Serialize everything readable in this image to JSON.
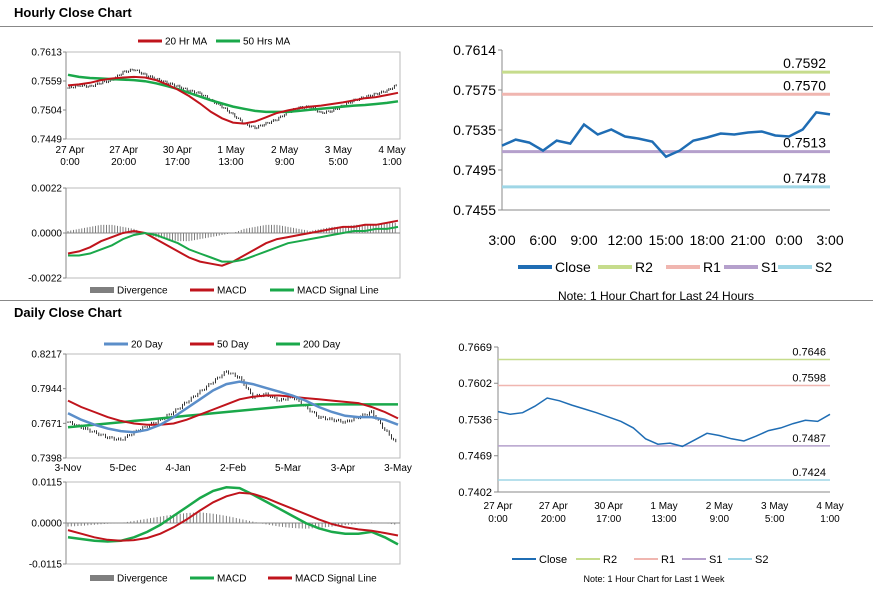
{
  "sections": {
    "hourly_title": "Hourly Close Chart",
    "daily_title": "Daily Close Chart"
  },
  "colors": {
    "close": "#1f6db4",
    "ma_red": "#c0141c",
    "ma_green": "#1aa84a",
    "ma_blue": "#5b8ec9",
    "r2": "#c6dc8c",
    "r1": "#f0b6b0",
    "s1": "#b5a0cc",
    "s2": "#9fd6e6",
    "divergence": "#7f7f7f"
  },
  "chart_data": [
    {
      "id": "hourly-price",
      "type": "line",
      "legend": [
        "20 Hr MA",
        "50 Hrs MA"
      ],
      "ylim": [
        0.7449,
        0.7613
      ],
      "yticks": [
        "0.7613",
        "0.7559",
        "0.7504",
        "0.7449"
      ],
      "xticks": [
        [
          "27 Apr",
          "0:00"
        ],
        [
          "27 Apr",
          "20:00"
        ],
        [
          "30 Apr",
          "17:00"
        ],
        [
          "1 May",
          "13:00"
        ],
        [
          "2 May",
          "9:00"
        ],
        [
          "3 May",
          "5:00"
        ],
        [
          "4 May",
          "1:00"
        ]
      ],
      "price": [
        0.7545,
        0.755,
        0.7548,
        0.7555,
        0.756,
        0.7575,
        0.758,
        0.757,
        0.7562,
        0.7555,
        0.7548,
        0.754,
        0.7535,
        0.7522,
        0.751,
        0.7495,
        0.7478,
        0.747,
        0.7478,
        0.7486,
        0.75,
        0.7508,
        0.751,
        0.7498,
        0.7502,
        0.7512,
        0.7522,
        0.7528,
        0.7534,
        0.754,
        0.7552
      ],
      "ma20": [
        0.755,
        0.7552,
        0.7555,
        0.756,
        0.7563,
        0.7565,
        0.7566,
        0.7565,
        0.756,
        0.7552,
        0.7542,
        0.753,
        0.7516,
        0.75,
        0.7488,
        0.748,
        0.7478,
        0.7482,
        0.749,
        0.7498,
        0.7503,
        0.7507,
        0.751,
        0.7512,
        0.7515,
        0.7518,
        0.7522,
        0.7526,
        0.7528,
        0.7532,
        0.7536
      ],
      "ma50": [
        0.757,
        0.7566,
        0.7564,
        0.7563,
        0.7562,
        0.7561,
        0.756,
        0.7558,
        0.7554,
        0.7549,
        0.7543,
        0.7536,
        0.7529,
        0.7522,
        0.7516,
        0.751,
        0.7506,
        0.7502,
        0.75,
        0.75,
        0.75,
        0.7502,
        0.7504,
        0.7506,
        0.7508,
        0.751,
        0.7512,
        0.7513,
        0.7515,
        0.7517,
        0.752
      ]
    },
    {
      "id": "hourly-macd",
      "type": "bar",
      "legend": [
        "Divergence",
        "MACD",
        "MACD Signal Line"
      ],
      "ylim": [
        -0.0022,
        0.0022
      ],
      "yticks": [
        "0.0022",
        "0.0000",
        "-0.0022"
      ],
      "divergence": [
        0.0001,
        0.0002,
        0.0003,
        0.0004,
        0.0004,
        0.0003,
        0.0002,
        0.0,
        -0.0002,
        -0.0003,
        -0.0004,
        -0.0004,
        -0.0003,
        -0.0002,
        -0.0001,
        0.0,
        0.0002,
        0.0003,
        0.0004,
        0.0004,
        0.0003,
        0.0002,
        0.0001,
        0.0002,
        0.0003,
        0.0003,
        0.0004,
        0.0004,
        0.0004,
        0.0005,
        0.0005
      ],
      "macd": [
        -0.001,
        -0.0009,
        -0.0007,
        -0.0004,
        -0.0002,
        0.0,
        0.0001,
        0.0,
        -0.0003,
        -0.0006,
        -0.0009,
        -0.0012,
        -0.0014,
        -0.0015,
        -0.0016,
        -0.0014,
        -0.0011,
        -0.0008,
        -0.0005,
        -0.0003,
        -0.0002,
        -0.0001,
        0.0,
        0.0001,
        0.0002,
        0.0003,
        0.0003,
        0.0004,
        0.0004,
        0.0005,
        0.0006
      ],
      "signal": [
        -0.0011,
        -0.0011,
        -0.001,
        -0.0008,
        -0.0006,
        -0.0003,
        -0.0001,
        0.0,
        -0.0001,
        -0.0003,
        -0.0005,
        -0.0008,
        -0.001,
        -0.0012,
        -0.0014,
        -0.0014,
        -0.0013,
        -0.0011,
        -0.0009,
        -0.0007,
        -0.0005,
        -0.0004,
        -0.0003,
        -0.0002,
        -0.0001,
        0.0,
        0.0001,
        0.0001,
        0.0002,
        0.0002,
        0.0003
      ]
    },
    {
      "id": "hourly-close-24h",
      "type": "line",
      "legend": [
        "Close",
        "R2",
        "R1",
        "S1",
        "S2"
      ],
      "ylim": [
        0.7455,
        0.7614
      ],
      "yticks": [
        "0.7614",
        "0.7575",
        "0.7535",
        "0.7495",
        "0.7455"
      ],
      "xticks": [
        "3:00",
        "6:00",
        "9:00",
        "12:00",
        "15:00",
        "18:00",
        "21:00",
        "0:00",
        "3:00"
      ],
      "levels": {
        "R2": 0.7592,
        "R1": 0.757,
        "S1": 0.7513,
        "S2": 0.7478
      },
      "level_labels": {
        "R2": "0.7592",
        "R1": "0.7570",
        "S1": "0.7513",
        "S2": "0.7478"
      },
      "close": [
        0.7519,
        0.7525,
        0.7522,
        0.7514,
        0.7524,
        0.7521,
        0.754,
        0.753,
        0.7535,
        0.7528,
        0.7526,
        0.7523,
        0.7508,
        0.7514,
        0.7524,
        0.7527,
        0.7531,
        0.753,
        0.7532,
        0.7533,
        0.7529,
        0.7528,
        0.7535,
        0.7552,
        0.755
      ],
      "note": "Note: 1 Hour Chart for Last 24 Hours"
    },
    {
      "id": "daily-price",
      "type": "line",
      "legend": [
        "20 Day",
        "50 Day",
        "200 Day"
      ],
      "ylim": [
        0.7398,
        0.8217
      ],
      "yticks": [
        "0.8217",
        "0.7944",
        "0.7671",
        "0.7398"
      ],
      "xticks": [
        "3-Nov",
        "5-Dec",
        "4-Jan",
        "2-Feb",
        "5-Mar",
        "3-Apr",
        "3-May"
      ],
      "price": [
        0.768,
        0.764,
        0.76,
        0.756,
        0.754,
        0.76,
        0.765,
        0.77,
        0.776,
        0.784,
        0.792,
        0.8,
        0.808,
        0.803,
        0.788,
        0.79,
        0.785,
        0.788,
        0.78,
        0.772,
        0.77,
        0.768,
        0.772,
        0.776,
        0.762,
        0.75
      ],
      "ma20": [
        0.775,
        0.77,
        0.766,
        0.763,
        0.761,
        0.76,
        0.762,
        0.766,
        0.772,
        0.779,
        0.786,
        0.793,
        0.798,
        0.8,
        0.798,
        0.795,
        0.792,
        0.789,
        0.785,
        0.78,
        0.776,
        0.773,
        0.772,
        0.772,
        0.77,
        0.766
      ],
      "ma50": [
        0.785,
        0.78,
        0.776,
        0.772,
        0.769,
        0.767,
        0.766,
        0.766,
        0.767,
        0.77,
        0.774,
        0.778,
        0.782,
        0.786,
        0.788,
        0.789,
        0.789,
        0.788,
        0.787,
        0.786,
        0.785,
        0.784,
        0.783,
        0.78,
        0.776,
        0.771
      ],
      "ma200": [
        0.764,
        0.765,
        0.766,
        0.767,
        0.768,
        0.769,
        0.77,
        0.771,
        0.772,
        0.773,
        0.774,
        0.775,
        0.776,
        0.777,
        0.778,
        0.779,
        0.78,
        0.781,
        0.7815,
        0.782,
        0.782,
        0.782,
        0.782,
        0.782,
        0.782,
        0.782
      ]
    },
    {
      "id": "daily-macd",
      "type": "bar",
      "legend": [
        "Divergence",
        "MACD",
        "MACD Signal Line"
      ],
      "ylim": [
        -0.0115,
        0.0115
      ],
      "yticks": [
        "0.0115",
        "0.0000",
        "-0.0115"
      ],
      "divergence": [
        -0.001,
        -0.0008,
        -0.0005,
        -0.0002,
        0.0,
        0.0006,
        0.0012,
        0.0018,
        0.0024,
        0.0028,
        0.003,
        0.0026,
        0.002,
        0.0012,
        0.0004,
        -0.0004,
        -0.001,
        -0.0014,
        -0.0016,
        -0.0014,
        -0.001,
        -0.0006,
        -0.0002,
        0.0002,
        0.0,
        -0.0006
      ],
      "macd": [
        -0.004,
        -0.0045,
        -0.005,
        -0.0052,
        -0.005,
        -0.004,
        -0.0025,
        -0.0005,
        0.002,
        0.0045,
        0.007,
        0.009,
        0.01,
        0.0098,
        0.008,
        0.006,
        0.004,
        0.002,
        0.0,
        -0.0015,
        -0.0025,
        -0.003,
        -0.003,
        -0.0025,
        -0.004,
        -0.006
      ],
      "signal": [
        -0.002,
        -0.003,
        -0.004,
        -0.0047,
        -0.005,
        -0.0048,
        -0.0042,
        -0.003,
        -0.0012,
        0.001,
        0.0035,
        0.0058,
        0.0075,
        0.0085,
        0.0082,
        0.007,
        0.0055,
        0.004,
        0.0025,
        0.001,
        -0.0003,
        -0.0012,
        -0.0018,
        -0.0022,
        -0.0028,
        -0.0035
      ]
    },
    {
      "id": "daily-close-week",
      "type": "line",
      "legend": [
        "Close",
        "R2",
        "R1",
        "S1",
        "S2"
      ],
      "ylim": [
        0.7402,
        0.7669
      ],
      "yticks": [
        "0.7669",
        "0.7602",
        "0.7536",
        "0.7469",
        "0.7402"
      ],
      "xticks": [
        [
          "27 Apr",
          "0:00"
        ],
        [
          "27 Apr",
          "20:00"
        ],
        [
          "30 Apr",
          "17:00"
        ],
        [
          "1 May",
          "13:00"
        ],
        [
          "2 May",
          "9:00"
        ],
        [
          "3 May",
          "5:00"
        ],
        [
          "4 May",
          "1:00"
        ]
      ],
      "levels": {
        "R2": 0.7646,
        "R1": 0.7598,
        "S1": 0.7487,
        "S2": 0.7424
      },
      "level_labels": {
        "R2": "0.7646",
        "R1": "0.7598",
        "S1": "0.7487",
        "S2": "0.7424"
      },
      "close": [
        0.755,
        0.7545,
        0.7548,
        0.756,
        0.7575,
        0.757,
        0.7562,
        0.7555,
        0.7548,
        0.754,
        0.7532,
        0.752,
        0.75,
        0.749,
        0.7492,
        0.7486,
        0.7498,
        0.751,
        0.7506,
        0.75,
        0.7496,
        0.7505,
        0.7515,
        0.752,
        0.7528,
        0.7534,
        0.7532,
        0.7545
      ],
      "note": "Note: 1 Hour Chart for Last 1 Week"
    }
  ]
}
